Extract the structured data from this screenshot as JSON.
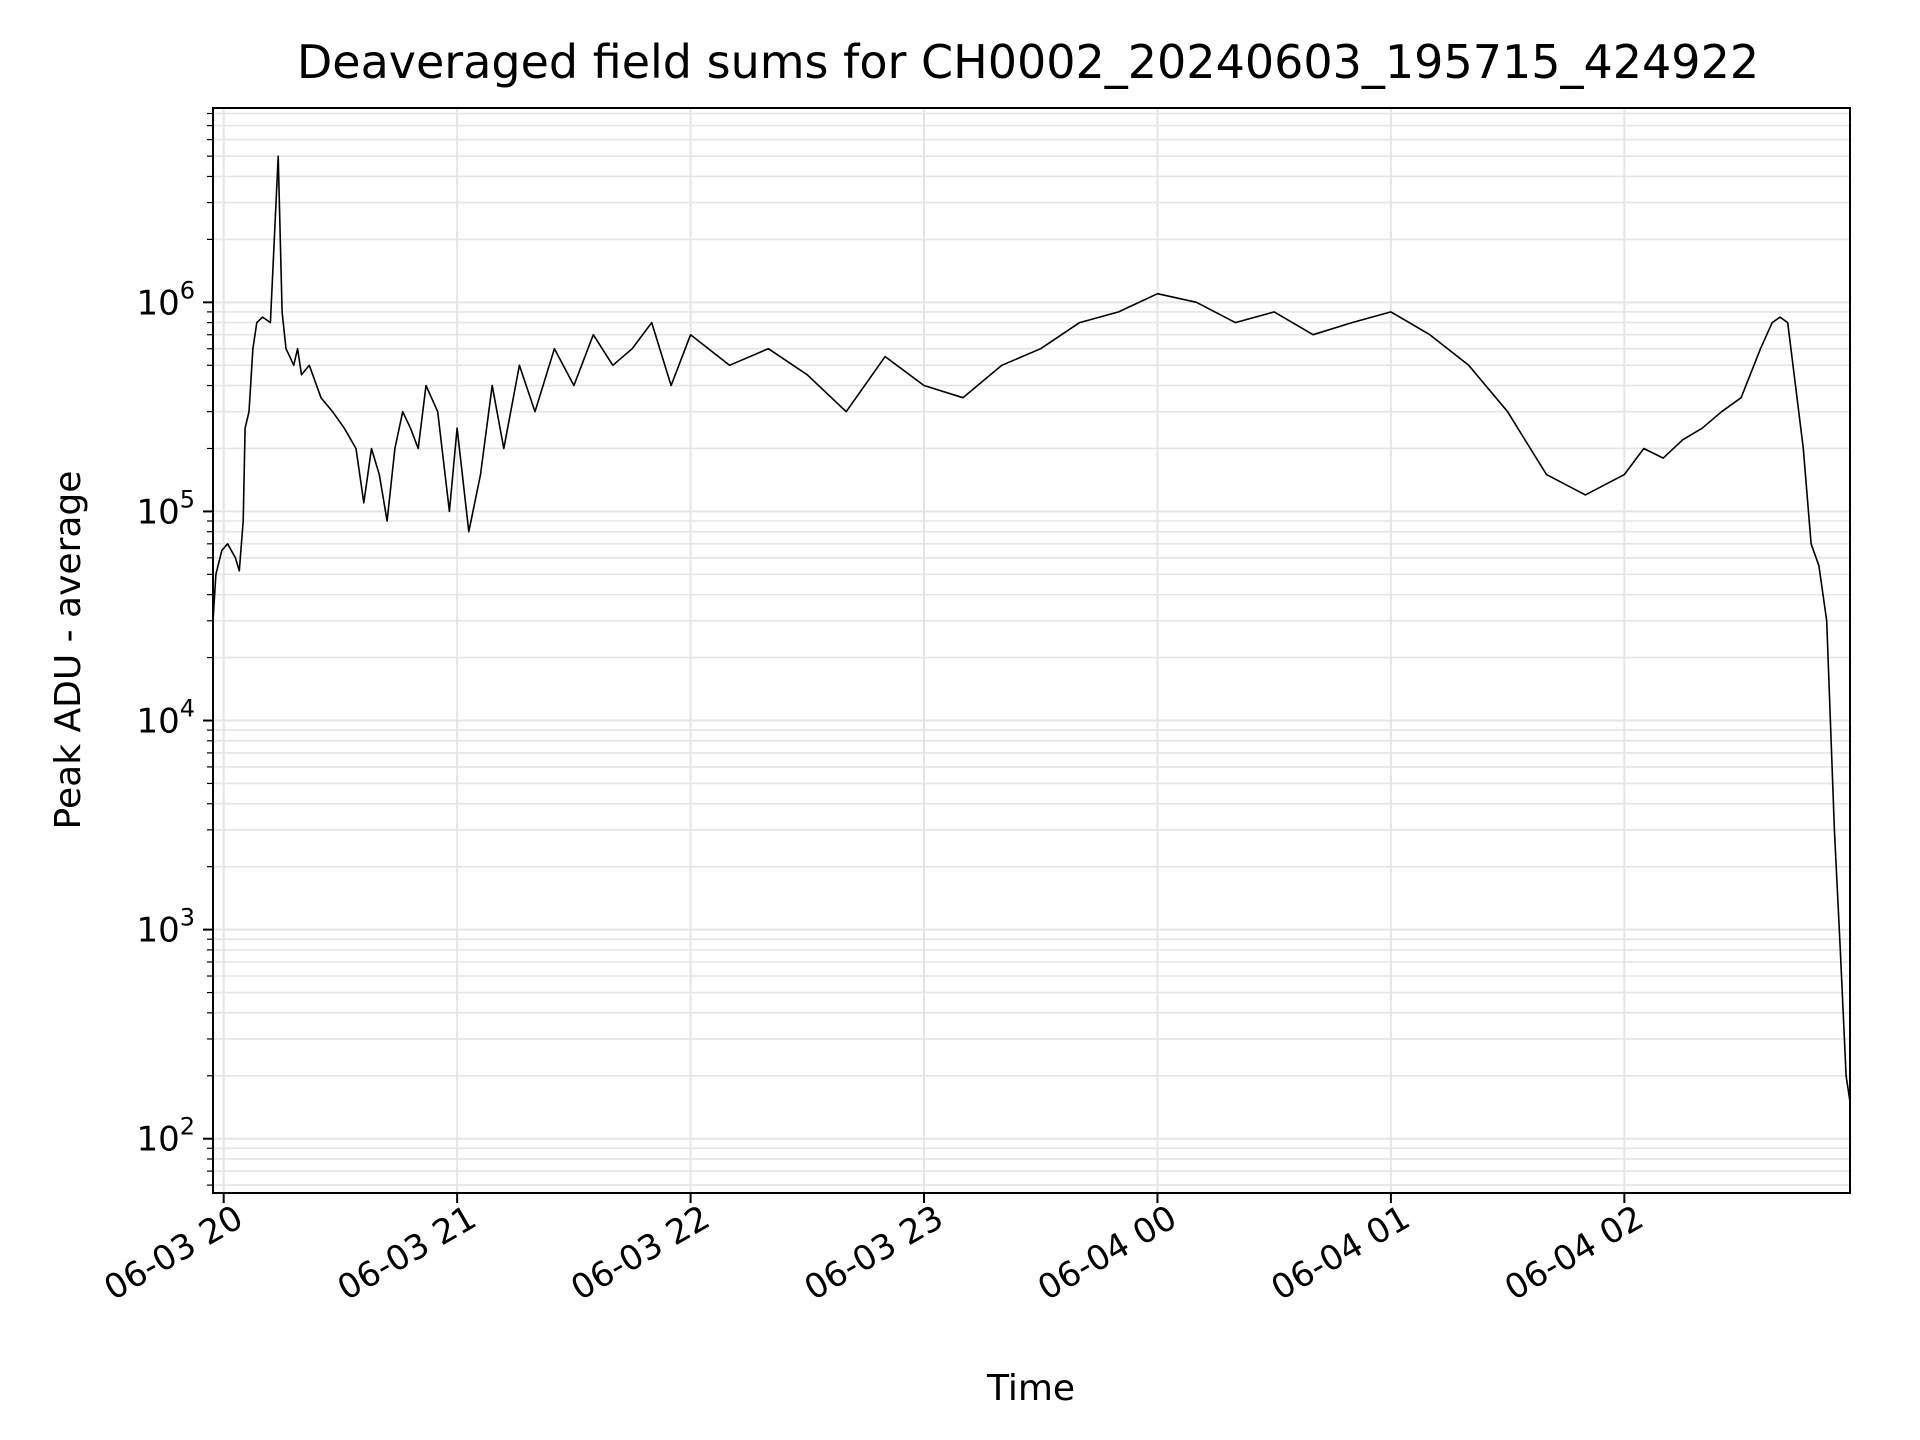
{
  "chart_data": {
    "type": "line",
    "title": "Deaveraged field sums for CH0002_20240603_195715_424922",
    "xlabel": "Time",
    "ylabel": "Peak ADU - average",
    "yscale": "log",
    "ylim": [
      55,
      8500000
    ],
    "xlim": [
      "2024-06-03 19:57:15",
      "2024-06-04 02:58:00"
    ],
    "grid": true,
    "line_color": "#000000",
    "grid_color": "#e5e5e5",
    "x_ticks": [
      {
        "label": "06-03 20",
        "time": "2024-06-03 20:00"
      },
      {
        "label": "06-03 21",
        "time": "2024-06-03 21:00"
      },
      {
        "label": "06-03 22",
        "time": "2024-06-03 22:00"
      },
      {
        "label": "06-03 23",
        "time": "2024-06-03 23:00"
      },
      {
        "label": "06-04 00",
        "time": "2024-06-04 00:00"
      },
      {
        "label": "06-04 01",
        "time": "2024-06-04 01:00"
      },
      {
        "label": "06-04 02",
        "time": "2024-06-04 02:00"
      }
    ],
    "y_ticks": [
      {
        "base": "10",
        "exp": "2",
        "value": 100
      },
      {
        "base": "10",
        "exp": "3",
        "value": 1000
      },
      {
        "base": "10",
        "exp": "4",
        "value": 10000
      },
      {
        "base": "10",
        "exp": "5",
        "value": 100000
      },
      {
        "base": "10",
        "exp": "6",
        "value": 1000000
      }
    ],
    "series": [
      {
        "x": [
          "2024-06-03 19:57:15",
          "2024-06-03 19:58:00",
          "2024-06-03 19:59:30",
          "2024-06-03 20:01:00",
          "2024-06-03 20:03:00",
          "2024-06-03 20:04:00",
          "2024-06-03 20:05:00",
          "2024-06-03 20:05:30",
          "2024-06-03 20:06:30",
          "2024-06-03 20:07:30",
          "2024-06-03 20:08:30",
          "2024-06-03 20:10:00",
          "2024-06-03 20:12:00",
          "2024-06-03 20:14:00",
          "2024-06-03 20:15:00",
          "2024-06-03 20:16:00",
          "2024-06-03 20:17:00",
          "2024-06-03 20:18:00",
          "2024-06-03 20:19:00",
          "2024-06-03 20:20:00",
          "2024-06-03 20:22:00",
          "2024-06-03 20:25:00",
          "2024-06-03 20:28:00",
          "2024-06-03 20:31:00",
          "2024-06-03 20:34:00",
          "2024-06-03 20:36:00",
          "2024-06-03 20:38:00",
          "2024-06-03 20:40:00",
          "2024-06-03 20:42:00",
          "2024-06-03 20:44:00",
          "2024-06-03 20:46:00",
          "2024-06-03 20:48:00",
          "2024-06-03 20:50:00",
          "2024-06-03 20:52:00",
          "2024-06-03 20:55:00",
          "2024-06-03 20:58:00",
          "2024-06-03 21:00:00",
          "2024-06-03 21:03:00",
          "2024-06-03 21:06:00",
          "2024-06-03 21:09:00",
          "2024-06-03 21:12:00",
          "2024-06-03 21:16:00",
          "2024-06-03 21:20:00",
          "2024-06-03 21:25:00",
          "2024-06-03 21:30:00",
          "2024-06-03 21:35:00",
          "2024-06-03 21:40:00",
          "2024-06-03 21:45:00",
          "2024-06-03 21:50:00",
          "2024-06-03 21:55:00",
          "2024-06-03 22:00:00",
          "2024-06-03 22:10:00",
          "2024-06-03 22:20:00",
          "2024-06-03 22:30:00",
          "2024-06-03 22:40:00",
          "2024-06-03 22:50:00",
          "2024-06-03 23:00:00",
          "2024-06-03 23:10:00",
          "2024-06-03 23:20:00",
          "2024-06-03 23:30:00",
          "2024-06-03 23:40:00",
          "2024-06-03 23:50:00",
          "2024-06-04 00:00:00",
          "2024-06-04 00:10:00",
          "2024-06-04 00:20:00",
          "2024-06-04 00:30:00",
          "2024-06-04 00:40:00",
          "2024-06-04 00:50:00",
          "2024-06-04 01:00:00",
          "2024-06-04 01:10:00",
          "2024-06-04 01:20:00",
          "2024-06-04 01:30:00",
          "2024-06-04 01:40:00",
          "2024-06-04 01:50:00",
          "2024-06-04 02:00:00",
          "2024-06-04 02:05:00",
          "2024-06-04 02:10:00",
          "2024-06-04 02:15:00",
          "2024-06-04 02:20:00",
          "2024-06-04 02:25:00",
          "2024-06-04 02:30:00",
          "2024-06-04 02:35:00",
          "2024-06-04 02:38:00",
          "2024-06-04 02:40:00",
          "2024-06-04 02:42:00",
          "2024-06-04 02:44:00",
          "2024-06-04 02:46:00",
          "2024-06-04 02:48:00",
          "2024-06-04 02:50:00",
          "2024-06-04 02:52:00",
          "2024-06-04 02:54:00",
          "2024-06-04 02:55:30",
          "2024-06-04 02:57:00",
          "2024-06-04 02:58:00"
        ],
        "y": [
          30000,
          50000,
          65000,
          70000,
          60000,
          52000,
          90000,
          250000,
          300000,
          600000,
          800000,
          850000,
          800000,
          5000000,
          900000,
          600000,
          550000,
          500000,
          600000,
          450000,
          500000,
          350000,
          300000,
          250000,
          200000,
          110000,
          200000,
          150000,
          90000,
          200000,
          300000,
          250000,
          200000,
          400000,
          300000,
          100000,
          250000,
          80000,
          150000,
          400000,
          200000,
          500000,
          300000,
          600000,
          400000,
          700000,
          500000,
          600000,
          800000,
          400000,
          700000,
          500000,
          600000,
          450000,
          300000,
          550000,
          400000,
          350000,
          500000,
          600000,
          800000,
          900000,
          1100000,
          1000000,
          800000,
          900000,
          700000,
          800000,
          900000,
          700000,
          500000,
          300000,
          150000,
          120000,
          150000,
          200000,
          180000,
          220000,
          250000,
          300000,
          350000,
          600000,
          800000,
          850000,
          800000,
          400000,
          200000,
          70000,
          55000,
          30000,
          3000,
          800,
          200,
          150
        ]
      }
    ]
  }
}
